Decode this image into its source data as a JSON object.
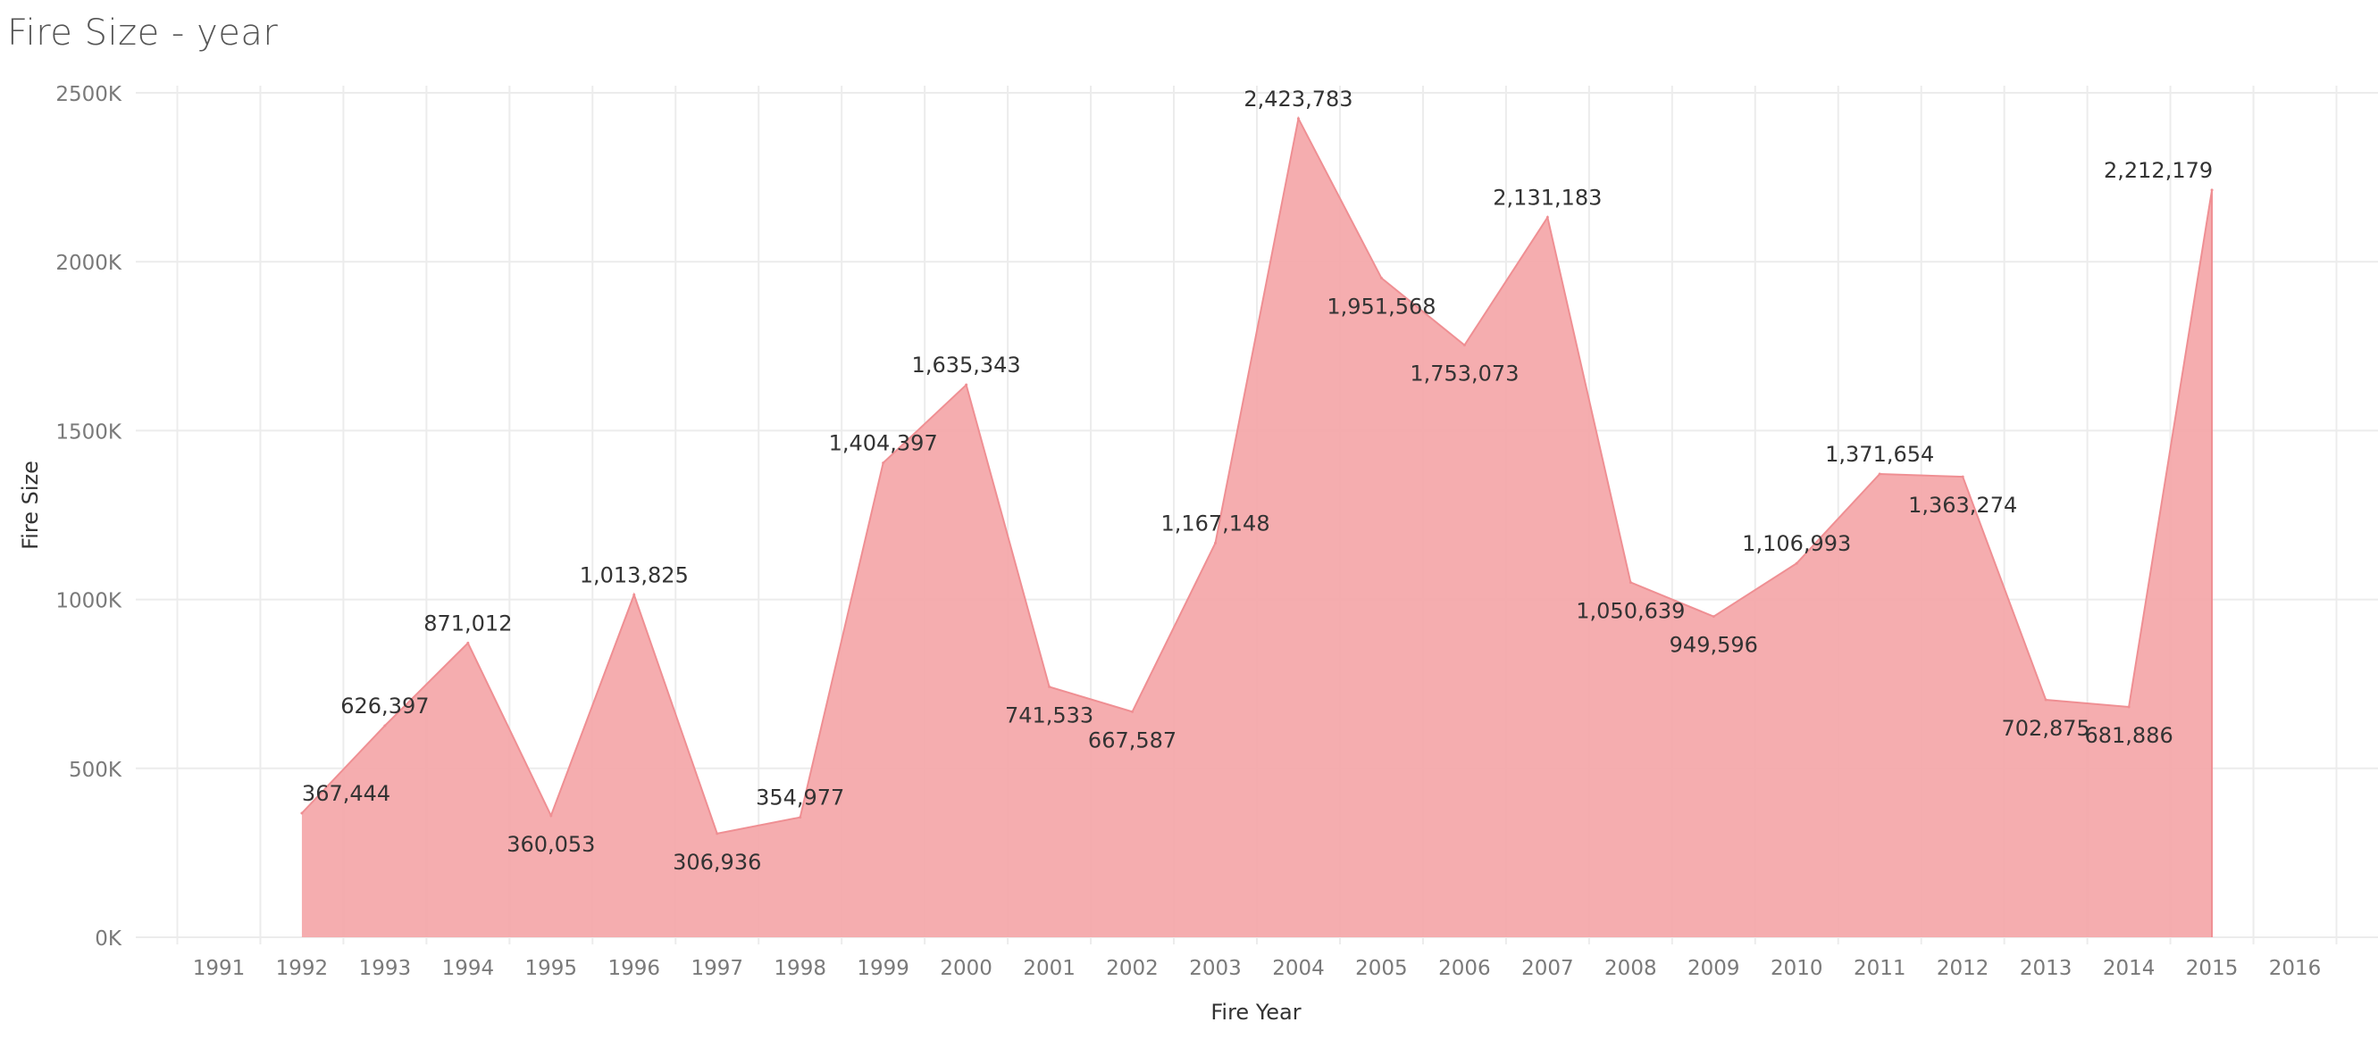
{
  "title": "Fire Size - year",
  "chart_data": {
    "type": "area",
    "title": "Fire Size - year",
    "xlabel": "Fire Year",
    "ylabel": "Fire Size",
    "x_ticks": [
      "1991",
      "1992",
      "1993",
      "1994",
      "1995",
      "1996",
      "1997",
      "1998",
      "1999",
      "2000",
      "2001",
      "2002",
      "2003",
      "2004",
      "2005",
      "2006",
      "2007",
      "2008",
      "2009",
      "2010",
      "2011",
      "2012",
      "2013",
      "2014",
      "2015",
      "2016"
    ],
    "y_ticks": [
      "0K",
      "500K",
      "1000K",
      "1500K",
      "2000K",
      "2500K"
    ],
    "y_tick_values": [
      0,
      500000,
      1000000,
      1500000,
      2000000,
      2500000
    ],
    "xlim": [
      1990,
      2017
    ],
    "ylim": [
      0,
      2500000
    ],
    "grid": true,
    "color": "#f4a6a8",
    "line_color": "#ef8f93",
    "x": [
      1992,
      1993,
      1994,
      1995,
      1996,
      1997,
      1998,
      1999,
      2000,
      2001,
      2002,
      2003,
      2004,
      2005,
      2006,
      2007,
      2008,
      2009,
      2010,
      2011,
      2012,
      2013,
      2014,
      2015
    ],
    "values": [
      367444,
      626397,
      871012,
      360053,
      1013825,
      306936,
      354977,
      1404397,
      1635343,
      741533,
      667587,
      1167148,
      2423783,
      1951568,
      1753073,
      2131183,
      1050639,
      949596,
      1106993,
      1371654,
      1363274,
      702875,
      681886,
      2212179
    ],
    "labels": [
      "367,444",
      "626,397",
      "871,012",
      "360,053",
      "1,013,825",
      "306,936",
      "354,977",
      "1,404,397",
      "1,635,343",
      "741,533",
      "667,587",
      "1,167,148",
      "2,423,783",
      "1,951,568",
      "1,753,073",
      "2,131,183",
      "1,050,639",
      "949,596",
      "1,106,993",
      "1,371,654",
      "1,363,274",
      "702,875",
      "681,886",
      "2,212,179"
    ]
  }
}
